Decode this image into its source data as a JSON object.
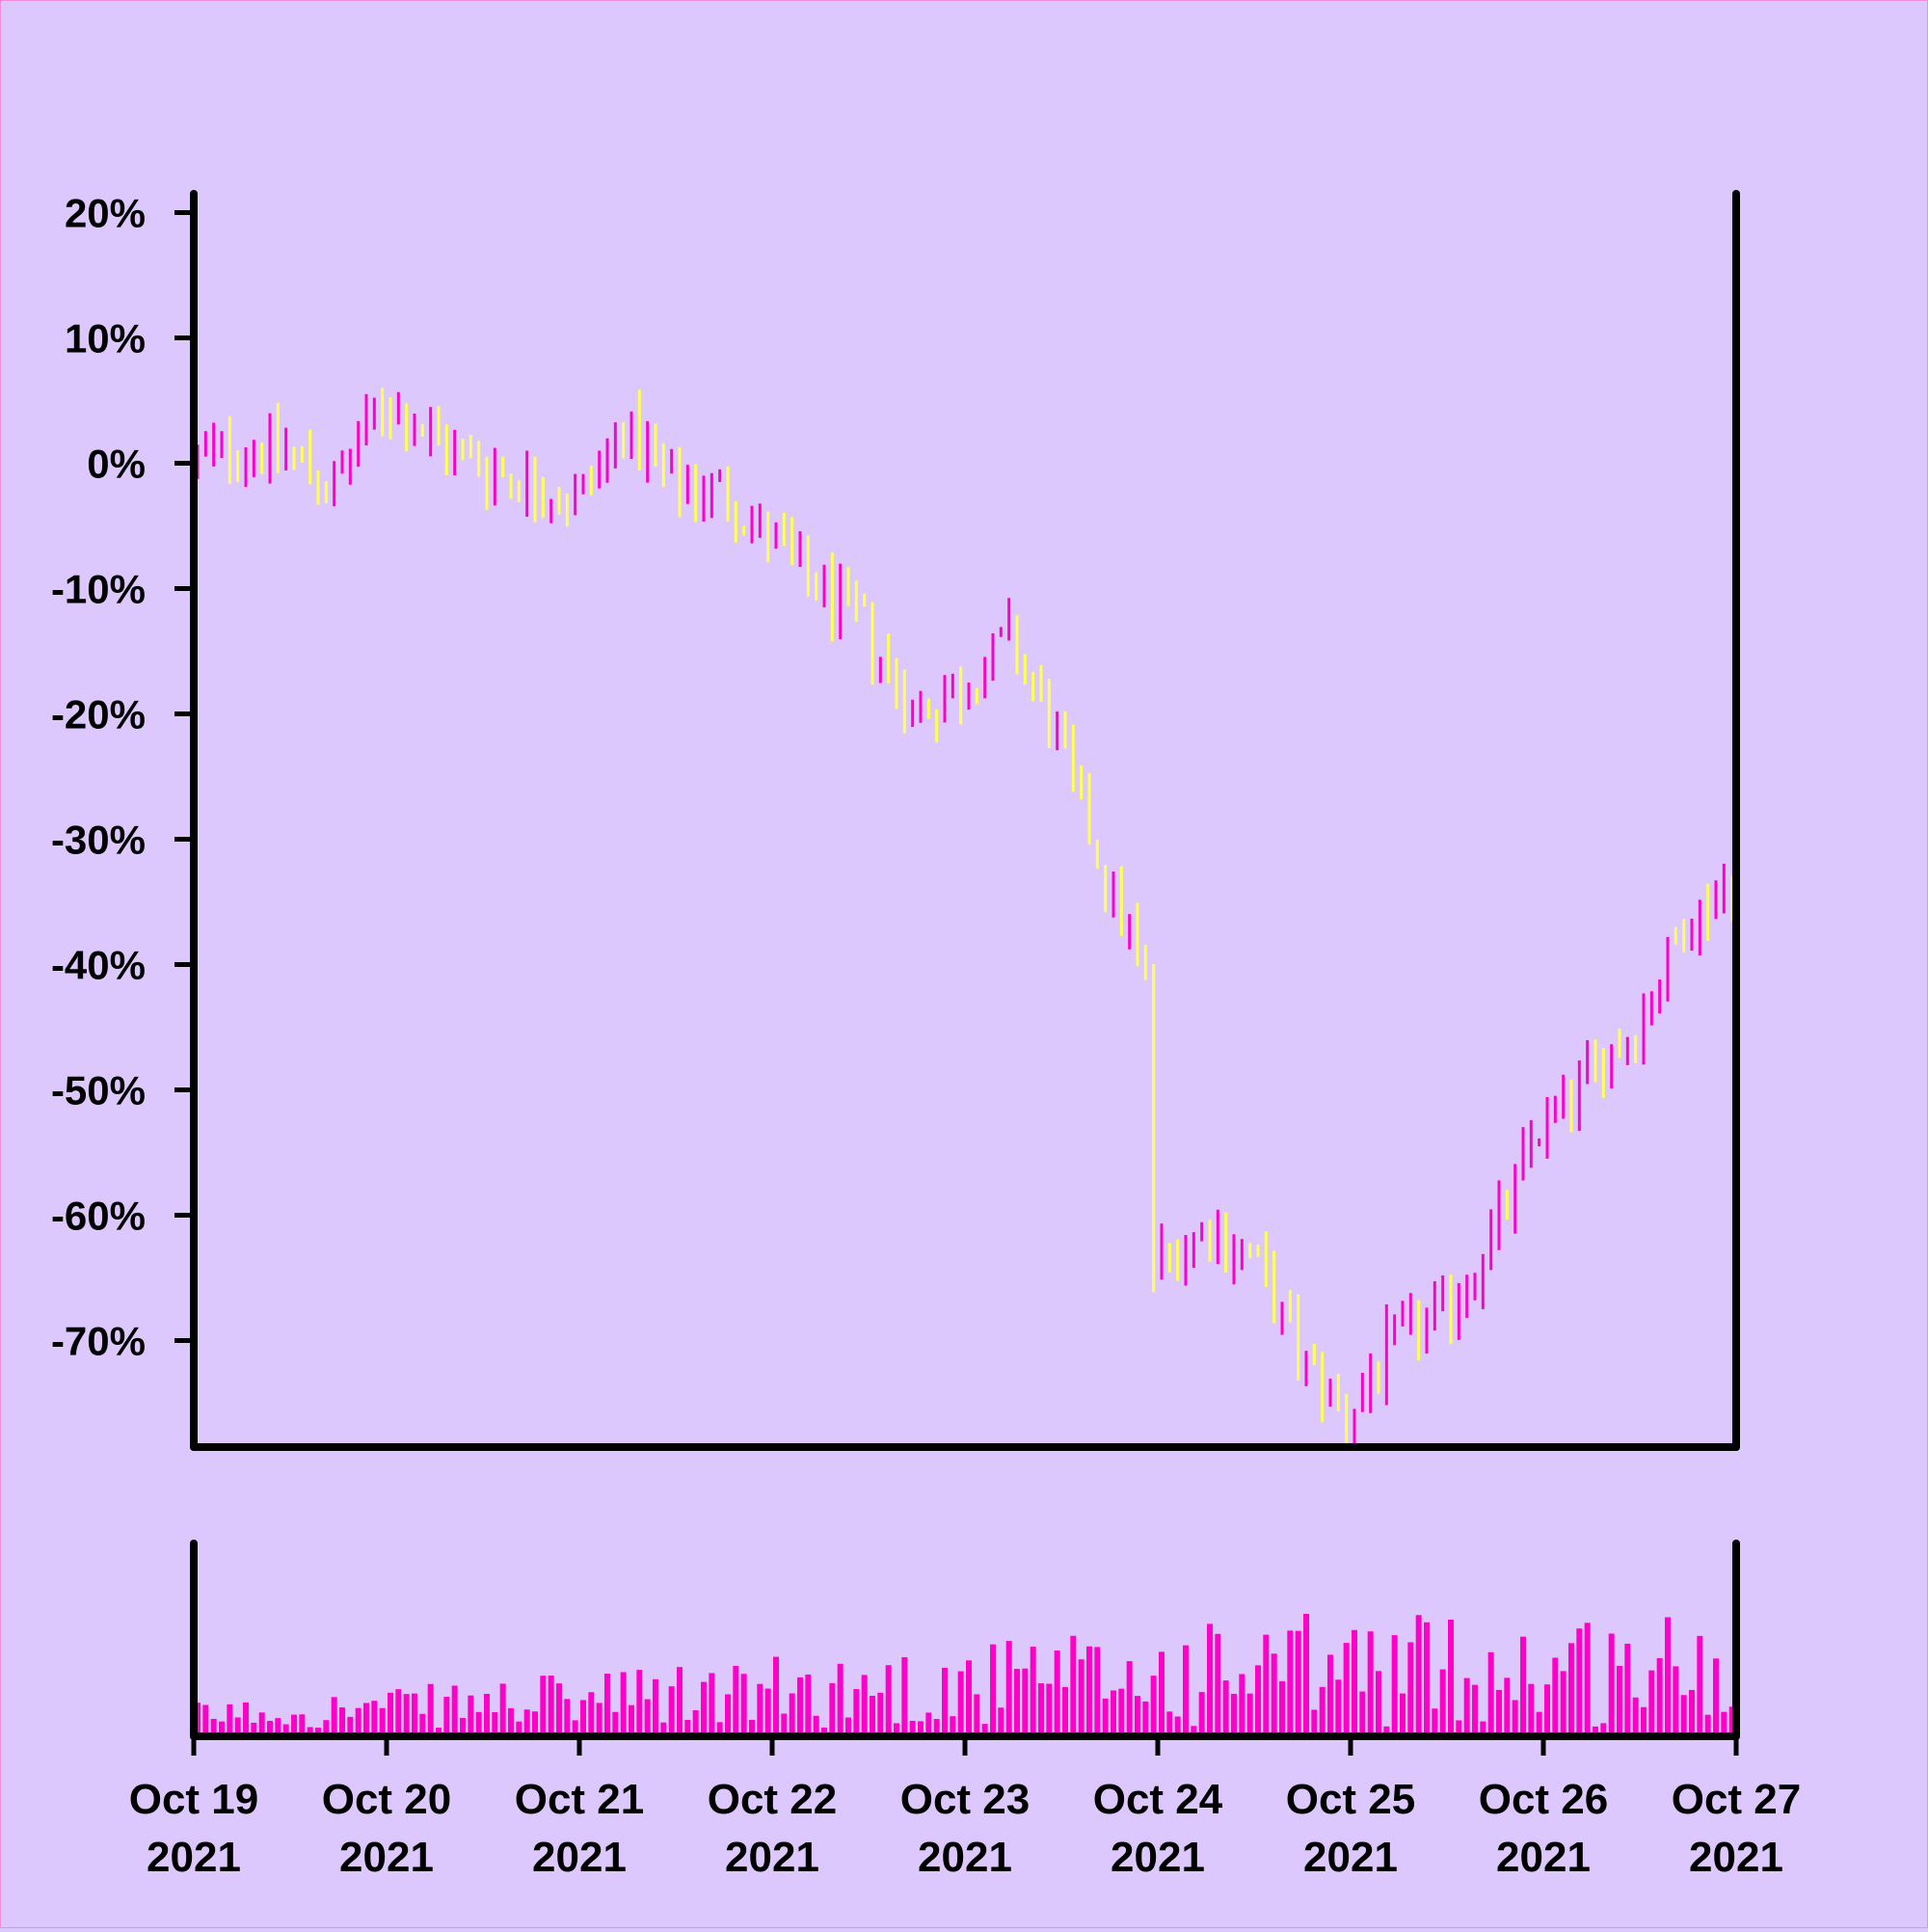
{
  "colors": {
    "background": "#dcc8fd",
    "up": "#ff00c8",
    "down": "#ffff55",
    "volume": "#ff00c8",
    "axis": "#000000"
  },
  "chart_data": {
    "type": "ohlc",
    "title": "",
    "xlabel": "",
    "ylabel": "",
    "y_tick_labels": [
      "20%",
      "10%",
      "0%",
      "-10%",
      "-20%",
      "-30%",
      "-40%",
      "-50%",
      "-60%",
      "-70%"
    ],
    "y_ticks": [
      20,
      10,
      0,
      -10,
      -20,
      -30,
      -40,
      -50,
      -60,
      -70
    ],
    "ylim": [
      -78.5,
      21.5
    ],
    "x_tick_labels": [
      {
        "date": "2021-10-19",
        "line1": "Oct 19",
        "line2": "2021"
      },
      {
        "date": "2021-10-20",
        "line1": "Oct 20",
        "line2": "2021"
      },
      {
        "date": "2021-10-21",
        "line1": "Oct 21",
        "line2": "2021"
      },
      {
        "date": "2021-10-22",
        "line1": "Oct 22",
        "line2": "2021"
      },
      {
        "date": "2021-10-23",
        "line1": "Oct 23",
        "line2": "2021"
      },
      {
        "date": "2021-10-24",
        "line1": "Oct 24",
        "line2": "2021"
      },
      {
        "date": "2021-10-25",
        "line1": "Oct 25",
        "line2": "2021"
      },
      {
        "date": "2021-10-26",
        "line1": "Oct 26",
        "line2": "2021"
      },
      {
        "date": "2021-10-27",
        "line1": "Oct 27",
        "line2": "2021"
      }
    ],
    "xlim": [
      "2021-10-19 00:00",
      "2021-10-27 00:00"
    ],
    "volume_panel": true,
    "grid": false,
    "legend": "none",
    "series": [
      {
        "date": "2021-10-19 00:00",
        "close": 0
      },
      {
        "date": "2021-10-19 06:00",
        "close": 1.5
      },
      {
        "date": "2021-10-19 12:00",
        "close": 1
      },
      {
        "date": "2021-10-19 18:00",
        "close": -2
      },
      {
        "date": "2021-10-20 00:00",
        "close": 5
      },
      {
        "date": "2021-10-20 06:00",
        "close": 2
      },
      {
        "date": "2021-10-20 12:00",
        "close": 0
      },
      {
        "date": "2021-10-20 18:00",
        "close": -1.5
      },
      {
        "date": "2021-10-21 00:00",
        "close": -3
      },
      {
        "date": "2021-10-21 06:00",
        "close": 3
      },
      {
        "date": "2021-10-21 12:00",
        "close": -2
      },
      {
        "date": "2021-10-21 18:00",
        "close": -2
      },
      {
        "date": "2021-10-22 00:00",
        "close": -6
      },
      {
        "date": "2021-10-22 06:00",
        "close": -10
      },
      {
        "date": "2021-10-22 12:00",
        "close": -13
      },
      {
        "date": "2021-10-22 18:00",
        "close": -20
      },
      {
        "date": "2021-10-23 00:00",
        "close": -18
      },
      {
        "date": "2021-10-23 06:00",
        "close": -14
      },
      {
        "date": "2021-10-23 12:00",
        "close": -22
      },
      {
        "date": "2021-10-23 18:00",
        "close": -33
      },
      {
        "date": "2021-10-23 23:00",
        "close": -41
      },
      {
        "date": "2021-10-24 00:00",
        "close": -64
      },
      {
        "date": "2021-10-24 06:00",
        "close": -61
      },
      {
        "date": "2021-10-24 12:00",
        "close": -63
      },
      {
        "date": "2021-10-24 18:00",
        "close": -71
      },
      {
        "date": "2021-10-25 00:00",
        "close": -76
      },
      {
        "date": "2021-10-25 06:00",
        "close": -70
      },
      {
        "date": "2021-10-25 12:00",
        "close": -68
      },
      {
        "date": "2021-10-25 18:00",
        "close": -62
      },
      {
        "date": "2021-10-26 00:00",
        "close": -53
      },
      {
        "date": "2021-10-26 06:00",
        "close": -49
      },
      {
        "date": "2021-10-26 12:00",
        "close": -45
      },
      {
        "date": "2021-10-26 18:00",
        "close": -37
      },
      {
        "date": "2021-10-27 00:00",
        "close": -33
      }
    ]
  }
}
